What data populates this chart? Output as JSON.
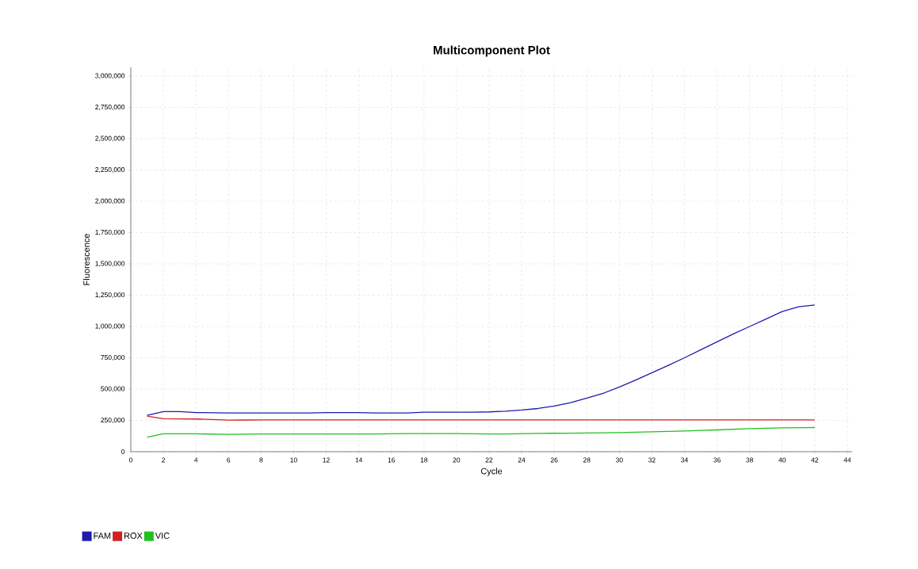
{
  "chart_data": {
    "type": "line",
    "title": "Multicomponent Plot",
    "xlabel": "Cycle",
    "ylabel": "Fluorescence",
    "x": [
      1,
      2,
      3,
      4,
      5,
      6,
      7,
      8,
      9,
      10,
      11,
      12,
      13,
      14,
      15,
      16,
      17,
      18,
      19,
      20,
      21,
      22,
      23,
      24,
      25,
      26,
      27,
      28,
      29,
      30,
      31,
      32,
      33,
      34,
      35,
      36,
      37,
      38,
      39,
      40,
      41,
      42
    ],
    "series": [
      {
        "name": "FAM",
        "color": "#1c1cb0",
        "values": [
          290000,
          321000,
          321000,
          313000,
          311000,
          309000,
          309000,
          309000,
          309000,
          309000,
          309000,
          313000,
          313000,
          313000,
          309000,
          309000,
          309000,
          315000,
          315000,
          315000,
          316000,
          318000,
          324000,
          333000,
          345000,
          364000,
          392000,
          428000,
          466000,
          517000,
          572000,
          631000,
          689000,
          750000,
          814000,
          877000,
          941000,
          1000000,
          1059000,
          1119000,
          1157000,
          1172000
        ]
      },
      {
        "name": "ROX",
        "color": "#d02020",
        "values": [
          284000,
          263000,
          262000,
          261000,
          257000,
          252000,
          253000,
          254000,
          254000,
          254000,
          254000,
          254000,
          254000,
          254000,
          254000,
          254000,
          254000,
          254000,
          254000,
          254000,
          254000,
          254000,
          254000,
          254000,
          254000,
          254000,
          254000,
          254000,
          254000,
          254000,
          254000,
          254000,
          254000,
          254000,
          254000,
          254000,
          254000,
          254000,
          254000,
          254000,
          254000,
          254000
        ]
      },
      {
        "name": "VIC",
        "color": "#20c020",
        "values": [
          116000,
          143000,
          143000,
          143000,
          141000,
          139000,
          140000,
          141000,
          141000,
          141000,
          141000,
          141000,
          142000,
          142000,
          142000,
          143000,
          145000,
          145000,
          145000,
          145000,
          143000,
          142000,
          142000,
          144000,
          146000,
          147000,
          148000,
          149000,
          151000,
          153000,
          156000,
          159000,
          162000,
          165000,
          170000,
          174000,
          179000,
          184000,
          187000,
          191000,
          192000,
          193000
        ]
      }
    ],
    "xlim": [
      0,
      44.3
    ],
    "ylim": [
      0,
      3070000
    ],
    "xticks": [
      0,
      2,
      4,
      6,
      8,
      10,
      12,
      14,
      16,
      18,
      20,
      22,
      24,
      26,
      28,
      30,
      32,
      34,
      36,
      38,
      40,
      42,
      44
    ],
    "yticks": [
      {
        "value": 0,
        "label": "0"
      },
      {
        "value": 250000,
        "label": "250,000"
      },
      {
        "value": 500000,
        "label": "500,000"
      },
      {
        "value": 750000,
        "label": "750,000"
      },
      {
        "value": 1000000,
        "label": "1,000,000"
      },
      {
        "value": 1250000,
        "label": "1,250,000"
      },
      {
        "value": 1500000,
        "label": "1,500,000"
      },
      {
        "value": 1750000,
        "label": "1,750,000"
      },
      {
        "value": 2000000,
        "label": "2,000,000"
      },
      {
        "value": 2250000,
        "label": "2,250,000"
      },
      {
        "value": 2500000,
        "label": "2,500,000"
      },
      {
        "value": 2750000,
        "label": "2,750,000"
      },
      {
        "value": 3000000,
        "label": "3,000,000"
      }
    ],
    "grid": true,
    "legend": "bottom left",
    "marker": "none",
    "line_style": "solid"
  }
}
